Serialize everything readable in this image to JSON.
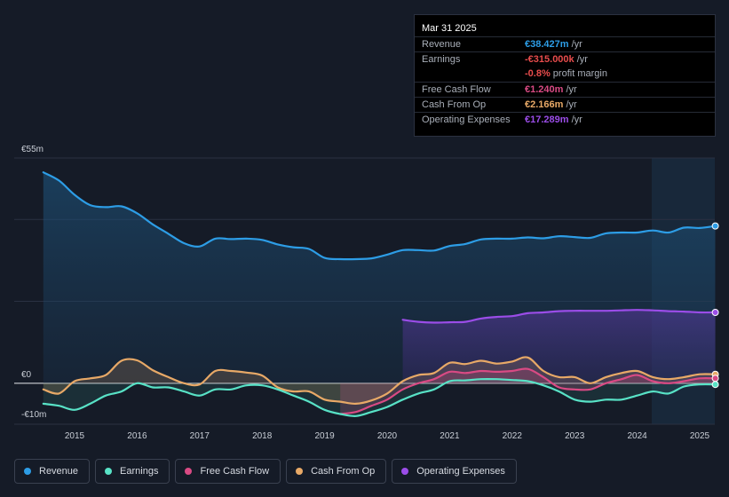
{
  "tooltip": {
    "date": "Mar 31 2025",
    "rows": {
      "revenue": {
        "label": "Revenue",
        "value": "€38.427m",
        "unit": " /yr"
      },
      "earnings": {
        "label": "Earnings",
        "value": "-€315.000k",
        "unit": " /yr"
      },
      "margin": {
        "value": "-0.8%",
        "text": " profit margin"
      },
      "fcf": {
        "label": "Free Cash Flow",
        "value": "€1.240m",
        "unit": " /yr"
      },
      "cfo": {
        "label": "Cash From Op",
        "value": "€2.166m",
        "unit": " /yr"
      },
      "opex": {
        "label": "Operating Expenses",
        "value": "€17.289m",
        "unit": " /yr"
      }
    }
  },
  "legend": {
    "revenue": "Revenue",
    "earnings": "Earnings",
    "fcf": "Free Cash Flow",
    "cfo": "Cash From Op",
    "opex": "Operating Expenses"
  },
  "colors": {
    "revenue": "#2d9de6",
    "earnings": "#58e2c6",
    "fcf": "#d94a84",
    "cfo": "#e8a967",
    "opex": "#9b4de8"
  },
  "chart_data": {
    "type": "line",
    "title": "",
    "xlabel": "",
    "ylabel": "",
    "ylim": [
      -10,
      55
    ],
    "y_tick_labels": {
      "top": "€55m",
      "zero": "€0",
      "bottom": "-€10m"
    },
    "x_tick_labels": [
      "2015",
      "2016",
      "2017",
      "2018",
      "2019",
      "2020",
      "2021",
      "2022",
      "2023",
      "2024",
      "2025"
    ],
    "x_tick_values": [
      2015,
      2016,
      2017,
      2018,
      2019,
      2020,
      2021,
      2022,
      2023,
      2024,
      2025
    ],
    "xlim": [
      2014.5,
      2025.25
    ],
    "forecast_start": 2024.25,
    "series": [
      {
        "key": "revenue",
        "name": "Revenue",
        "x": [
          2014.5,
          2014.75,
          2015.0,
          2015.25,
          2015.5,
          2015.75,
          2016.0,
          2016.25,
          2016.5,
          2016.75,
          2017.0,
          2017.25,
          2017.5,
          2017.75,
          2018.0,
          2018.25,
          2018.5,
          2018.75,
          2019.0,
          2019.25,
          2019.5,
          2019.75,
          2020.0,
          2020.25,
          2020.5,
          2020.75,
          2021.0,
          2021.25,
          2021.5,
          2021.75,
          2022.0,
          2022.25,
          2022.5,
          2022.75,
          2023.0,
          2023.25,
          2023.5,
          2023.75,
          2024.0,
          2024.25,
          2024.5,
          2024.75,
          2025.0,
          2025.25
        ],
        "values": [
          51.5,
          49.5,
          46.0,
          43.5,
          43.0,
          43.2,
          41.5,
          38.8,
          36.5,
          34.2,
          33.4,
          35.3,
          35.2,
          35.3,
          35.0,
          33.9,
          33.2,
          32.8,
          30.6,
          30.3,
          30.3,
          30.5,
          31.4,
          32.5,
          32.5,
          32.4,
          33.5,
          34.0,
          35.1,
          35.3,
          35.3,
          35.6,
          35.4,
          35.9,
          35.7,
          35.5,
          36.6,
          36.8,
          36.8,
          37.3,
          36.8,
          38.0,
          37.9,
          38.4
        ]
      },
      {
        "key": "opex",
        "name": "Operating Expenses",
        "x": [
          2020.25,
          2020.5,
          2020.75,
          2021.0,
          2021.25,
          2021.5,
          2021.75,
          2022.0,
          2022.25,
          2022.5,
          2022.75,
          2023.0,
          2023.25,
          2023.5,
          2023.75,
          2024.0,
          2024.25,
          2024.5,
          2024.75,
          2025.0,
          2025.25
        ],
        "values": [
          15.5,
          15.0,
          14.8,
          14.9,
          15.0,
          15.8,
          16.2,
          16.4,
          17.1,
          17.3,
          17.6,
          17.7,
          17.7,
          17.7,
          17.8,
          17.9,
          17.8,
          17.6,
          17.5,
          17.3,
          17.3
        ]
      },
      {
        "key": "cfo",
        "name": "Cash From Op",
        "x": [
          2014.5,
          2014.75,
          2015.0,
          2015.25,
          2015.5,
          2015.75,
          2016.0,
          2016.25,
          2016.5,
          2016.75,
          2017.0,
          2017.25,
          2017.5,
          2017.75,
          2018.0,
          2018.25,
          2018.5,
          2018.75,
          2019.0,
          2019.25,
          2019.5,
          2019.75,
          2020.0,
          2020.25,
          2020.5,
          2020.75,
          2021.0,
          2021.25,
          2021.5,
          2021.75,
          2022.0,
          2022.25,
          2022.5,
          2022.75,
          2023.0,
          2023.25,
          2023.5,
          2023.75,
          2024.0,
          2024.25,
          2024.5,
          2024.75,
          2025.0,
          2025.25
        ],
        "values": [
          -1.5,
          -2.5,
          0.5,
          1.2,
          2.0,
          5.5,
          5.6,
          3.2,
          1.5,
          0.0,
          -0.3,
          3.0,
          3.0,
          2.6,
          1.9,
          -1.0,
          -2.0,
          -2.0,
          -4.0,
          -4.5,
          -5.0,
          -4.2,
          -2.5,
          0.5,
          2.0,
          2.5,
          5.0,
          4.7,
          5.5,
          4.8,
          5.3,
          6.3,
          3.0,
          1.5,
          1.5,
          0.0,
          1.5,
          2.5,
          3.0,
          1.5,
          1.0,
          1.5,
          2.2,
          2.2
        ]
      },
      {
        "key": "fcf",
        "name": "Free Cash Flow",
        "x": [
          2019.25,
          2019.5,
          2019.75,
          2020.0,
          2020.25,
          2020.5,
          2020.75,
          2021.0,
          2021.25,
          2021.5,
          2021.75,
          2022.0,
          2022.25,
          2022.5,
          2022.75,
          2023.0,
          2023.25,
          2023.5,
          2023.75,
          2024.0,
          2024.25,
          2024.5,
          2024.75,
          2025.0,
          2025.25
        ],
        "values": [
          -7.5,
          -7.0,
          -5.5,
          -4.0,
          -1.5,
          0.0,
          1.0,
          2.8,
          2.5,
          3.0,
          2.8,
          3.0,
          3.5,
          1.5,
          -1.0,
          -1.5,
          -1.5,
          0.0,
          1.0,
          2.0,
          0.5,
          0.0,
          0.5,
          1.2,
          1.2
        ]
      },
      {
        "key": "earnings",
        "name": "Earnings",
        "x": [
          2014.5,
          2014.75,
          2015.0,
          2015.25,
          2015.5,
          2015.75,
          2016.0,
          2016.25,
          2016.5,
          2016.75,
          2017.0,
          2017.25,
          2017.5,
          2017.75,
          2018.0,
          2018.25,
          2018.5,
          2018.75,
          2019.0,
          2019.25,
          2019.5,
          2019.75,
          2020.0,
          2020.25,
          2020.5,
          2020.75,
          2021.0,
          2021.25,
          2021.5,
          2021.75,
          2022.0,
          2022.25,
          2022.5,
          2022.75,
          2023.0,
          2023.25,
          2023.5,
          2023.75,
          2024.0,
          2024.25,
          2024.5,
          2024.75,
          2025.0,
          2025.25
        ],
        "values": [
          -5.0,
          -5.5,
          -6.5,
          -5.0,
          -3.0,
          -2.0,
          0.0,
          -1.0,
          -1.0,
          -2.0,
          -3.0,
          -1.5,
          -1.5,
          -0.5,
          -0.5,
          -1.5,
          -3.0,
          -4.5,
          -6.5,
          -7.5,
          -8.0,
          -7.0,
          -5.8,
          -4.0,
          -2.5,
          -1.5,
          0.5,
          0.7,
          1.0,
          1.0,
          0.8,
          0.5,
          -0.5,
          -2.0,
          -4.0,
          -4.5,
          -4.0,
          -4.0,
          -3.0,
          -2.0,
          -2.5,
          -0.8,
          -0.3,
          -0.3
        ]
      }
    ]
  }
}
